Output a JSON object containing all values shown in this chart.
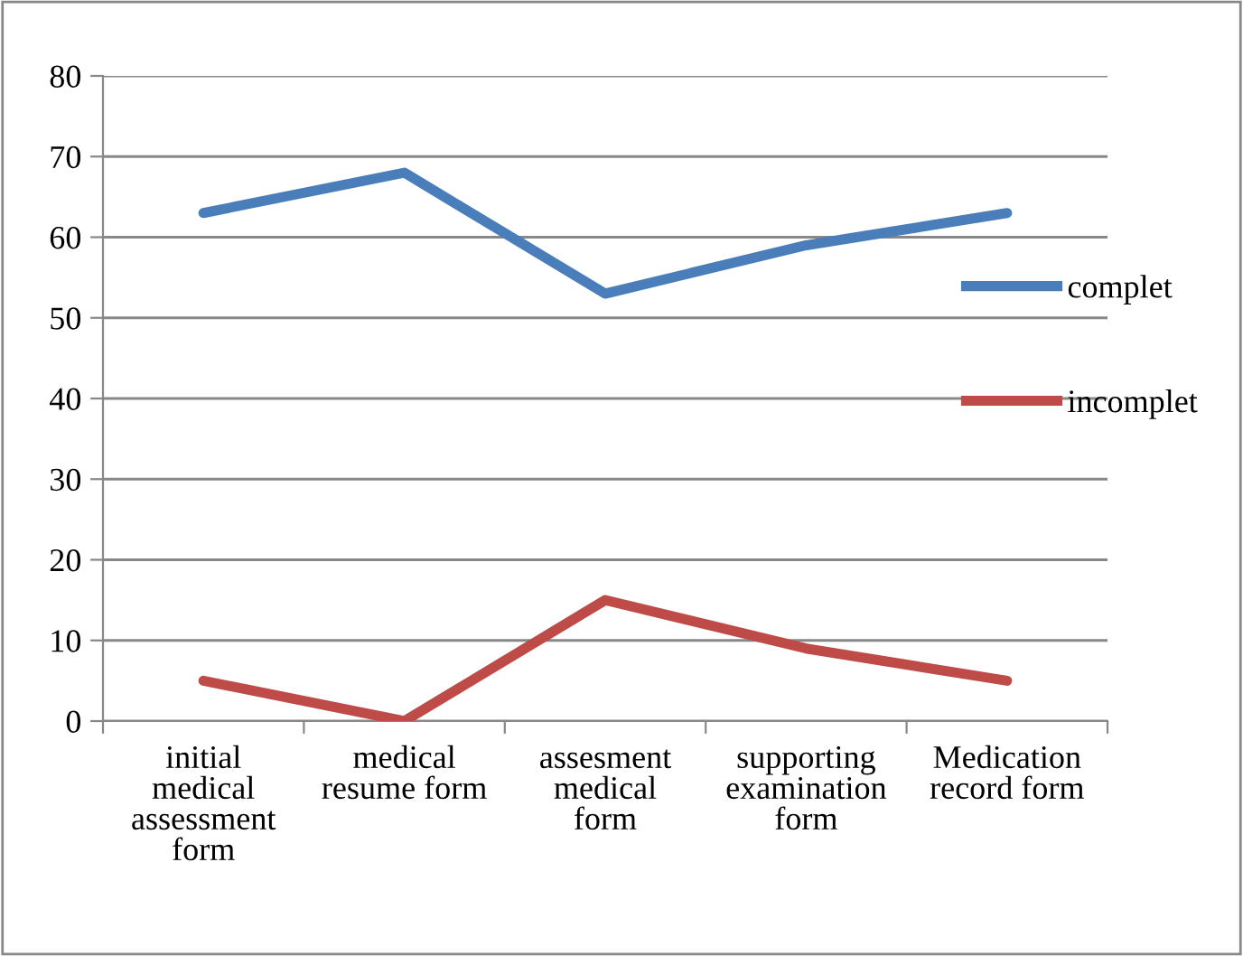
{
  "chart_data": {
    "type": "line",
    "categories": [
      "initial medical assessment form",
      "medical resume form",
      "assesment medical form",
      "supporting examination form",
      "Medication record form"
    ],
    "series": [
      {
        "name": "complet",
        "color": "#4a7ebb",
        "values": [
          63,
          68,
          53,
          59,
          63
        ]
      },
      {
        "name": "incomplet",
        "color": "#be4b48",
        "values": [
          5,
          0,
          15,
          9,
          5
        ]
      }
    ],
    "ylim": [
      0,
      80
    ],
    "yticks": [
      0,
      10,
      20,
      30,
      40,
      50,
      60,
      70,
      80
    ],
    "grid": "y",
    "legend": "right",
    "marker": "none",
    "line_style": "solid"
  }
}
